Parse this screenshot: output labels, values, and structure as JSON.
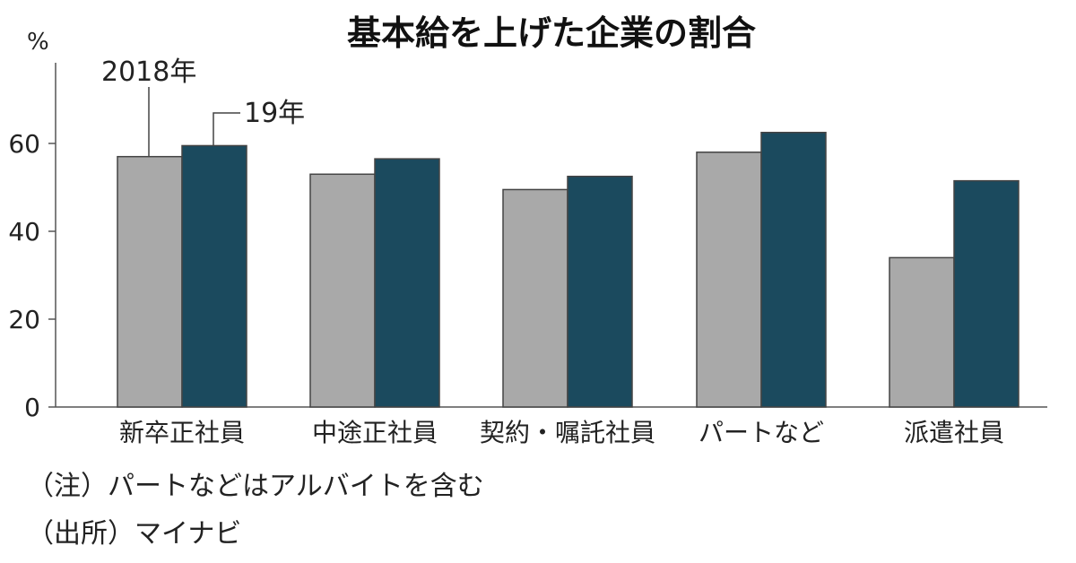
{
  "chart_data": {
    "type": "bar",
    "title": "基本給を上げた企業の割合",
    "ylabel": "%",
    "ylim": [
      0,
      70
    ],
    "yticks": [
      0,
      20,
      40,
      60
    ],
    "categories": [
      "新卒正社員",
      "中途正社員",
      "契約・嘱託社員",
      "パートなど",
      "派遣社員"
    ],
    "series": [
      {
        "name": "2018年",
        "values": [
          57,
          53,
          49.5,
          58,
          34
        ],
        "color": "#a9a9a9"
      },
      {
        "name": "19年",
        "values": [
          59.5,
          56.5,
          52.5,
          62.5,
          51.5
        ],
        "color": "#1b4a5e"
      }
    ],
    "grid": false,
    "legend": "callout-labels-top-left"
  },
  "notes": {
    "note1": "（注）パートなどはアルバイトを含む",
    "note2": "（出所）マイナビ"
  }
}
